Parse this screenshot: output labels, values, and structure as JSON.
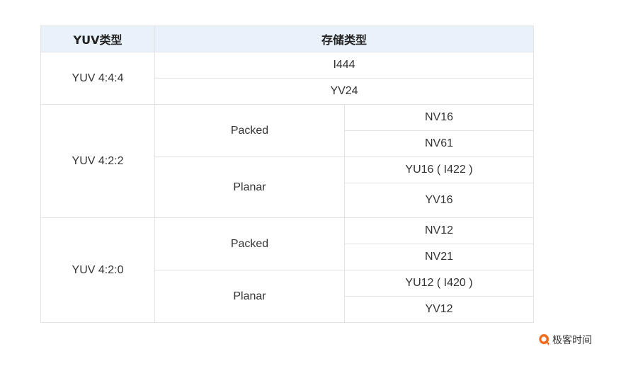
{
  "header": {
    "yuv_type": "YUV类型",
    "storage_type": "存储类型"
  },
  "rows": {
    "yuv444": {
      "label": "YUV 4:4:4",
      "formats": [
        "I444",
        "YV24"
      ]
    },
    "yuv422": {
      "label": "YUV 4:2:2",
      "packed": {
        "label": "Packed",
        "formats": [
          "NV16",
          "NV61"
        ]
      },
      "planar": {
        "label": "Planar",
        "formats": [
          "YU16 ( I422 )",
          "YV16"
        ]
      }
    },
    "yuv420": {
      "label": "YUV 4:2:0",
      "packed": {
        "label": "Packed",
        "formats": [
          "NV12",
          "NV21"
        ]
      },
      "planar": {
        "label": "Planar",
        "formats": [
          "YU12 ( I420 )",
          "YV12"
        ]
      }
    }
  },
  "brand": {
    "text": "极客时间",
    "icon": "geektime-logo-icon",
    "color": "#f26b1d"
  }
}
